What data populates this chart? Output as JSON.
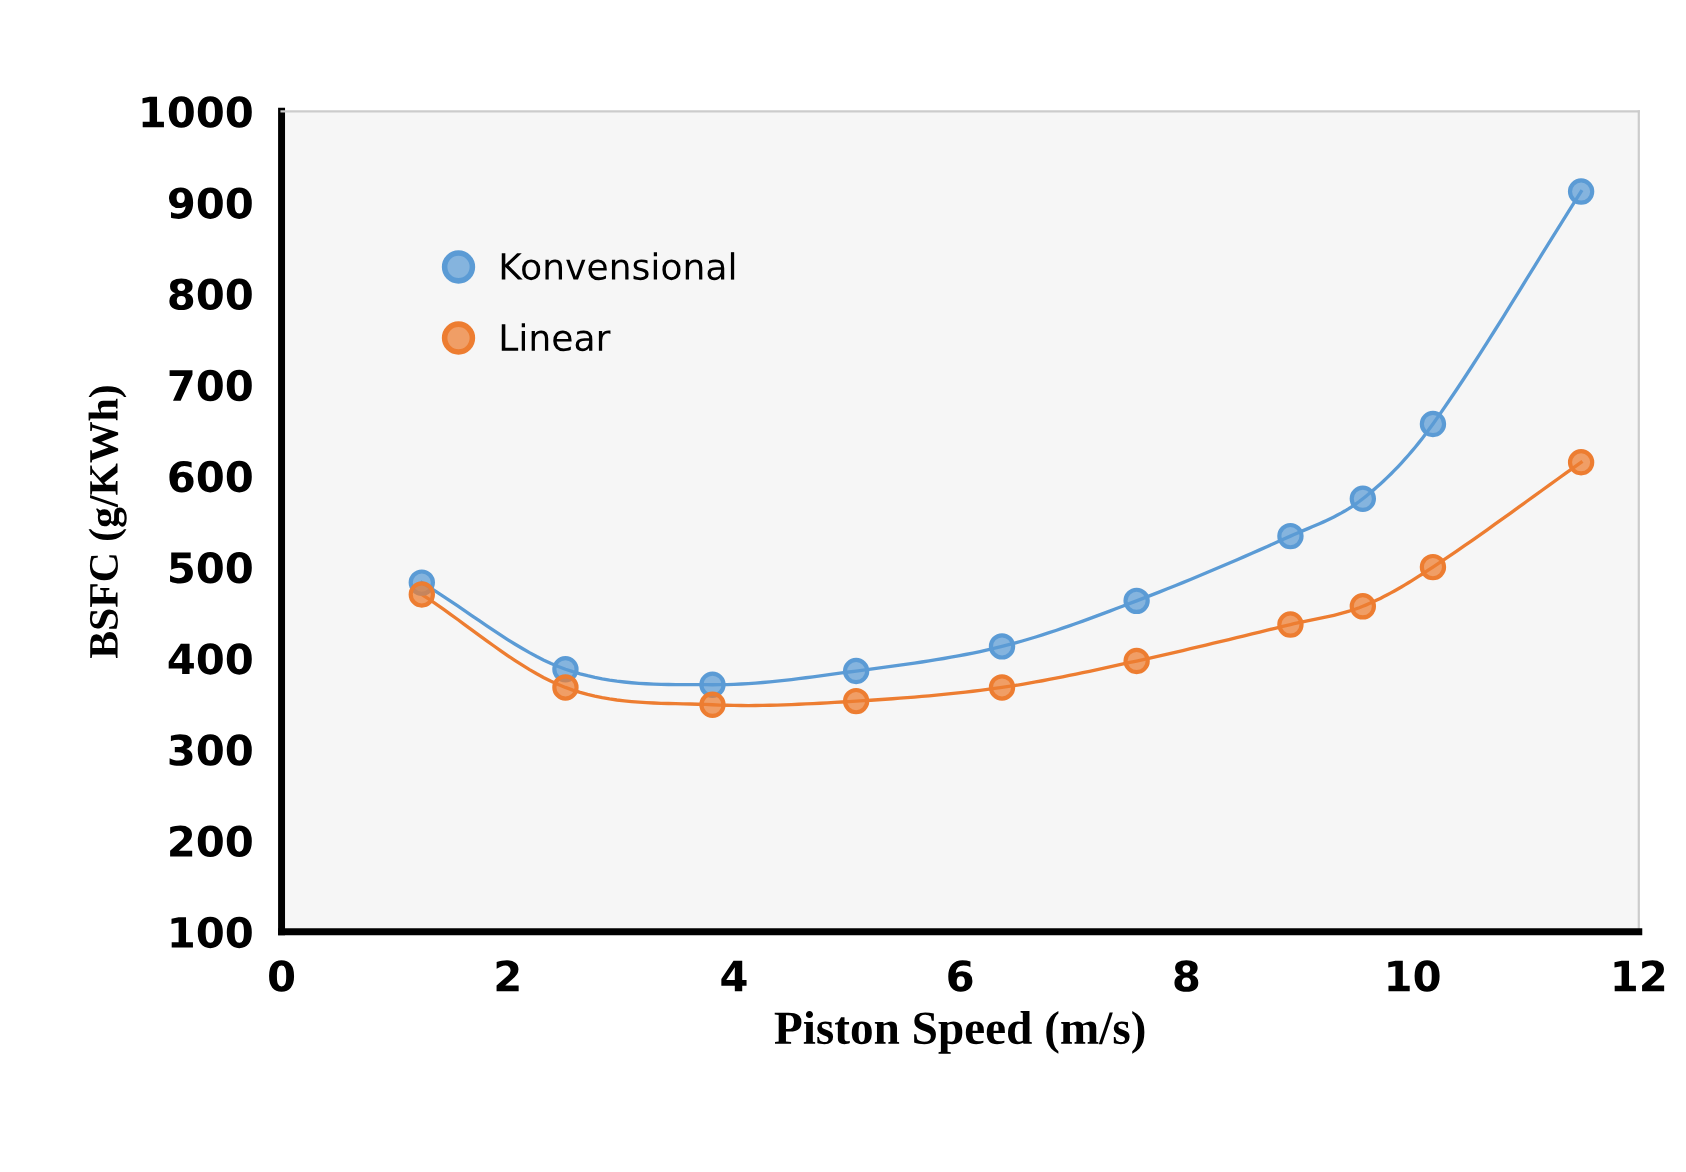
{
  "chart_data": {
    "type": "line",
    "xlabel": "Piston Speed (m/s)",
    "ylabel": "BSFC (g/KWh)",
    "x": [
      1.24,
      2.51,
      3.81,
      5.08,
      6.37,
      7.56,
      8.92,
      9.56,
      10.18,
      11.49
    ],
    "series": [
      {
        "name": "Konvensional",
        "color": "#5b9bd5",
        "values": [
          483,
          388,
          371,
          386,
          413,
          463,
          534,
          575,
          657,
          912
        ]
      },
      {
        "name": "Linear",
        "color": "#ed7d31",
        "values": [
          470,
          368,
          349,
          353,
          368,
          397,
          437,
          457,
          500,
          615
        ]
      }
    ],
    "xlim": [
      0,
      12
    ],
    "xticks": [
      0,
      2,
      4,
      6,
      8,
      10,
      12
    ],
    "ylim": [
      100,
      1000
    ],
    "yticks": [
      100,
      200,
      300,
      400,
      500,
      600,
      700,
      800,
      900,
      1000
    ],
    "marker": "circle",
    "line_style": "solid",
    "grid": false,
    "legend": "top left"
  }
}
